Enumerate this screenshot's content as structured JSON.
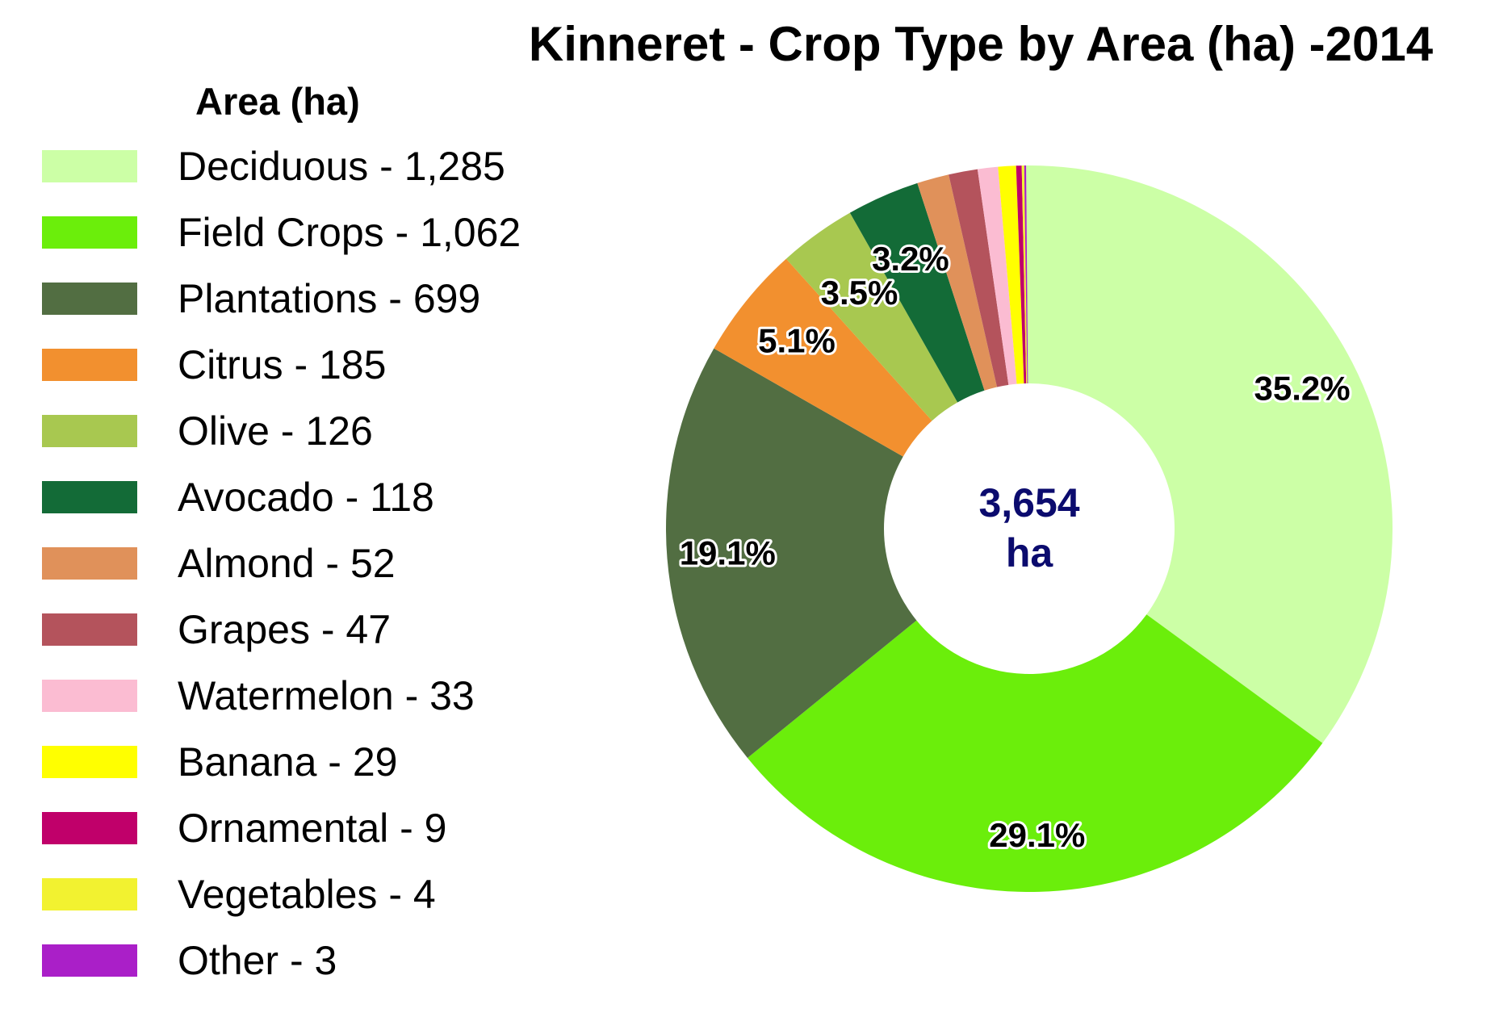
{
  "chart_data": {
    "type": "pie",
    "title": "Kinneret - Crop Type by Area (ha) -2014",
    "legend_title": "Area (ha)",
    "legend_position": "left",
    "center_value": "3,654",
    "center_unit": "ha",
    "slices": [
      {
        "legend": "Deciduous - 1,285",
        "value": 1285,
        "color": "#ccffa6",
        "pct_label": "35.2%"
      },
      {
        "legend": "Field Crops - 1,062",
        "value": 1062,
        "color": "#6bee0b",
        "pct_label": "29.1%"
      },
      {
        "legend": "Plantations - 699",
        "value": 699,
        "color": "#526e42",
        "pct_label": "19.1%"
      },
      {
        "legend": "Citrus - 185",
        "value": 185,
        "color": "#f2902f",
        "pct_label": "5.1%"
      },
      {
        "legend": "Olive - 126",
        "value": 126,
        "color": "#a8c850",
        "pct_label": "3.5%"
      },
      {
        "legend": "Avocado - 118",
        "value": 118,
        "color": "#136b37",
        "pct_label": "3.2%"
      },
      {
        "legend": "Almond - 52",
        "value": 52,
        "color": "#e0915a",
        "pct_label": ""
      },
      {
        "legend": "Grapes - 47",
        "value": 47,
        "color": "#b4535c",
        "pct_label": ""
      },
      {
        "legend": "Watermelon - 33",
        "value": 33,
        "color": "#fbbcd2",
        "pct_label": ""
      },
      {
        "legend": "Banana - 29",
        "value": 29,
        "color": "#ffff00",
        "pct_label": ""
      },
      {
        "legend": "Ornamental - 9",
        "value": 9,
        "color": "#c0006a",
        "pct_label": ""
      },
      {
        "legend": "Vegetables - 4",
        "value": 4,
        "color": "#f2f230",
        "pct_label": ""
      },
      {
        "legend": "Other - 3",
        "value": 3,
        "color": "#aa1fc8",
        "pct_label": ""
      }
    ]
  }
}
